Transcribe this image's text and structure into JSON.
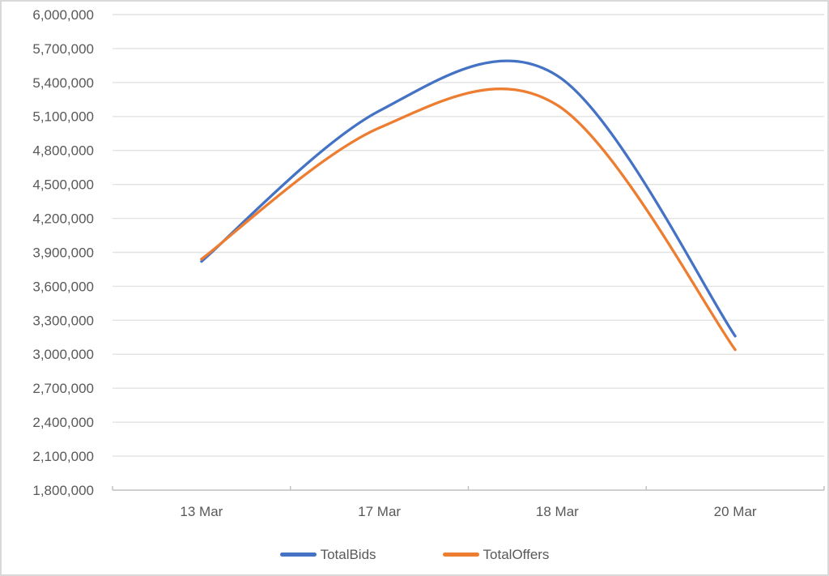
{
  "chart_data": {
    "type": "line",
    "title": "",
    "smoothed": true,
    "grid": "horizontal",
    "legend_position": "bottom",
    "categories": [
      "13 Mar",
      "17 Mar",
      "18 Mar",
      "20 Mar"
    ],
    "series": [
      {
        "name": "TotalBids",
        "color": "#4472C4",
        "values": [
          3820000,
          5150000,
          5460000,
          3160000
        ]
      },
      {
        "name": "TotalOffers",
        "color": "#ED7D31",
        "values": [
          3840000,
          5000000,
          5200000,
          3040000
        ]
      }
    ],
    "y_axis": {
      "min": 1800000,
      "max": 6000000,
      "step": 300000,
      "tick_labels": [
        "6,000,000",
        "5,700,000",
        "5,400,000",
        "5,100,000",
        "4,800,000",
        "4,500,000",
        "4,200,000",
        "3,900,000",
        "3,600,000",
        "3,300,000",
        "3,000,000",
        "2,700,000",
        "2,400,000",
        "2,100,000",
        "1,800,000"
      ]
    },
    "x_axis": {
      "tick_labels": [
        "13 Mar",
        "17 Mar",
        "18 Mar",
        "20 Mar"
      ]
    },
    "colors": {
      "background": "#FFFFFF",
      "border": "#D9D9D9",
      "gridline": "#E2E2E2",
      "axis_line": "#BFBFBF",
      "axis_text": "#595959"
    }
  }
}
